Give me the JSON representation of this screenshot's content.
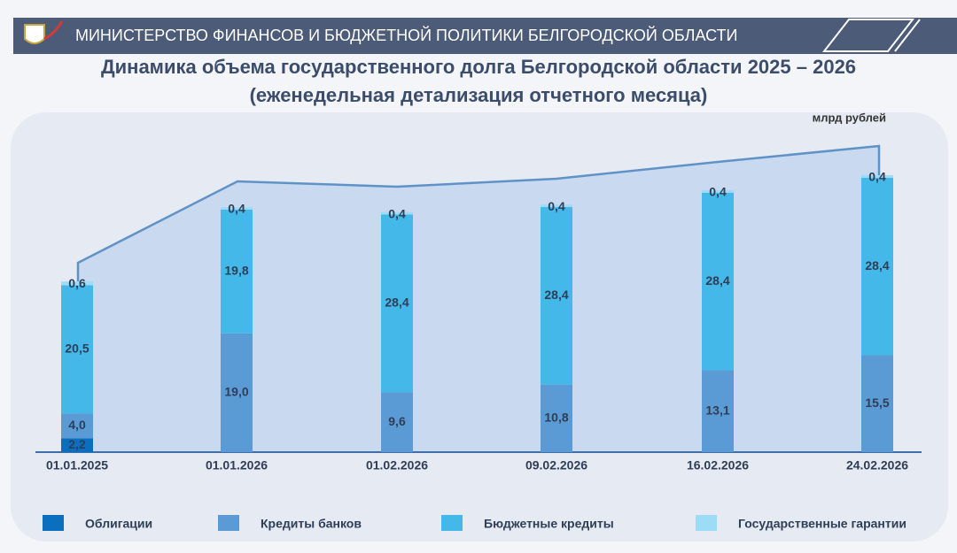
{
  "header": {
    "title": "МИНИСТЕРСТВО ФИНАНСОВ И БЮДЖЕТНОЙ ПОЛИТИКИ БЕЛГОРОДСКОЙ ОБЛАСТИ"
  },
  "chart_data": {
    "type": "bar",
    "stacked": true,
    "title": "Динамика объема государственного долга Белгородской области 2025 – 2026",
    "subtitle": "(еженедельная детализация отчетного месяца)",
    "unit": "млрд рублей",
    "categories": [
      "01.01.2025",
      "01.01.2026",
      "01.02.2026",
      "09.02.2026",
      "16.02.2026",
      "24.02.2026"
    ],
    "series": [
      {
        "name": "Облигации",
        "color": "#0b6fc0",
        "values": [
          2.2,
          null,
          null,
          null,
          null,
          null
        ],
        "value_labels": [
          "2,2",
          null,
          null,
          null,
          null,
          null
        ]
      },
      {
        "name": "Кредиты банков",
        "color": "#5b9bd5",
        "values": [
          4.0,
          19.0,
          9.6,
          10.8,
          13.1,
          15.5
        ],
        "value_labels": [
          "4,0",
          "19,0",
          "9,6",
          "10,8",
          "13,1",
          "15,5"
        ]
      },
      {
        "name": "Бюджетные кредиты",
        "color": "#45b8ea",
        "values": [
          20.5,
          19.8,
          28.4,
          28.4,
          28.4,
          28.4
        ],
        "value_labels": [
          "20,5",
          "19,8",
          "28,4",
          "28,4",
          "28,4",
          "28,4"
        ]
      },
      {
        "name": "Государственные гарантии",
        "color": "#9ddcf5",
        "values": [
          0.6,
          0.4,
          0.4,
          0.4,
          0.4,
          0.4
        ],
        "value_labels": [
          "0,6",
          "0,4",
          "0,4",
          "0,4",
          "0,4",
          "0,4"
        ]
      }
    ]
  }
}
